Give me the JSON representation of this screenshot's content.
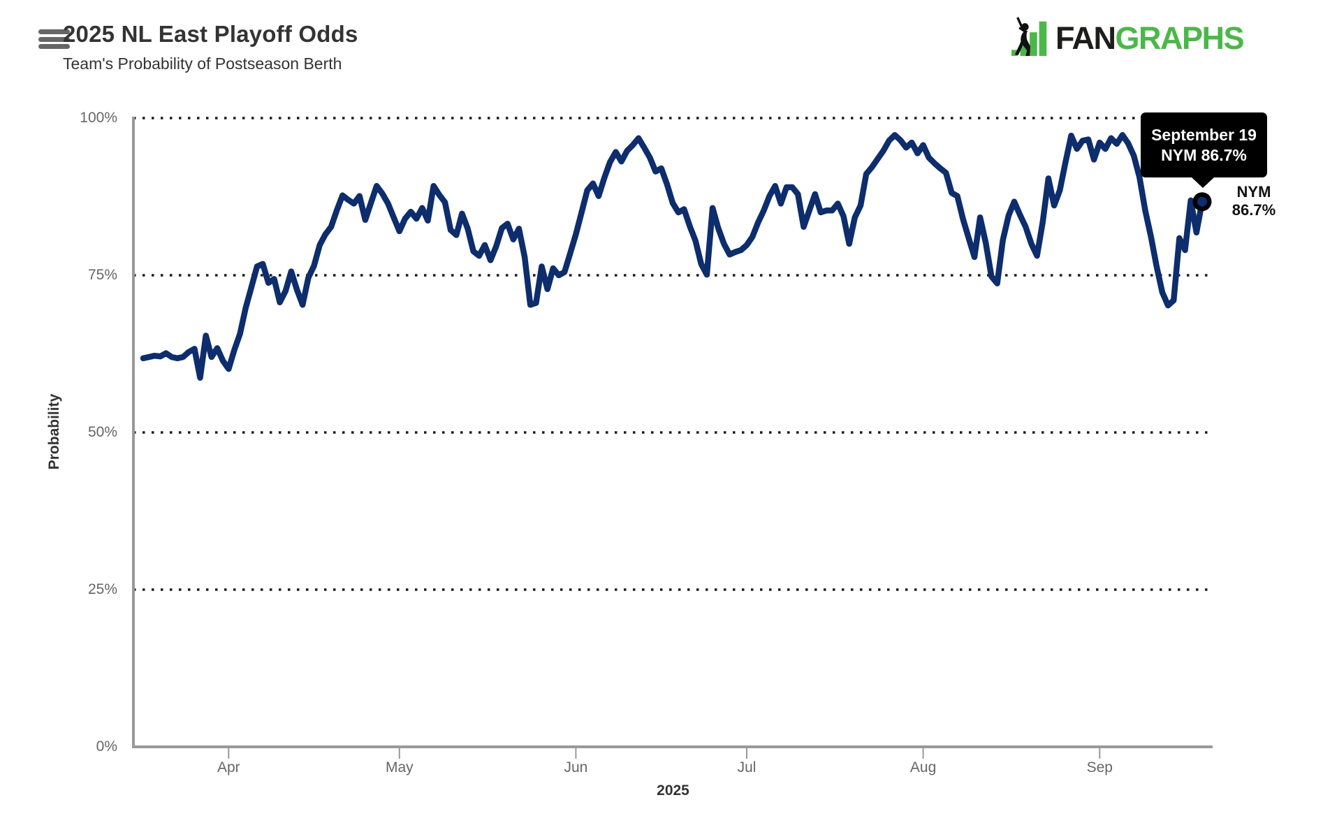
{
  "header": {
    "title": "2025 NL East Playoff Odds",
    "subtitle": "Team's Probability of Postseason Berth"
  },
  "logo": {
    "fan": "FAN",
    "graphs": "GRAPHS",
    "green": "#4cb749",
    "dark": "#1d1d1b"
  },
  "chart_data": {
    "type": "line",
    "title": "2025 NL East Playoff Odds",
    "subtitle": "Team's Probability of Postseason Berth",
    "ylabel": "Probability",
    "ylim": [
      0,
      100
    ],
    "grid": "dotted horizontal at 25/50/75/100",
    "legend_position": "none (tooltip + end label only)",
    "y_axis": {
      "ticks": [
        "100%",
        "75%",
        "50%",
        "25%",
        "0%"
      ]
    },
    "x_axis": {
      "ticks": [
        "Apr",
        "May",
        "Jun",
        "Jul",
        "Aug",
        "Sep"
      ],
      "month_tick_day_index": [
        15,
        45,
        76,
        106,
        137,
        168
      ],
      "year_label": "2025"
    },
    "series": [
      {
        "name": "NYM",
        "color": "#0d2d6d",
        "start_date": "Mar 17",
        "end_date": "Sep 19",
        "frequency": "daily",
        "values": [
          61.8,
          62.0,
          62.2,
          62.1,
          62.6,
          62.0,
          61.8,
          62.0,
          62.8,
          63.3,
          58.7,
          65.4,
          62.0,
          63.4,
          61.4,
          60.1,
          63.1,
          65.7,
          69.8,
          73.1,
          76.4,
          76.8,
          73.8,
          74.4,
          70.7,
          72.5,
          75.6,
          72.7,
          70.3,
          74.6,
          76.5,
          79.8,
          81.5,
          82.7,
          85.3,
          87.7,
          87.0,
          86.4,
          87.6,
          83.8,
          86.5,
          89.2,
          88.0,
          86.4,
          84.2,
          82.0,
          84.0,
          85.1,
          84.0,
          85.7,
          83.7,
          89.2,
          87.8,
          86.6,
          82.2,
          81.4,
          84.8,
          82.4,
          78.8,
          78.1,
          79.8,
          77.4,
          79.6,
          82.5,
          83.2,
          80.7,
          82.4,
          77.9,
          70.3,
          70.6,
          76.4,
          72.8,
          76.1,
          75.0,
          75.5,
          78.5,
          81.5,
          85.0,
          88.5,
          89.6,
          87.6,
          90.5,
          93.0,
          94.6,
          93.1,
          94.8,
          95.7,
          96.8,
          95.3,
          93.7,
          91.5,
          92.0,
          89.5,
          86.5,
          85.0,
          85.5,
          82.8,
          80.5,
          76.8,
          75.1,
          85.7,
          82.5,
          80.0,
          78.3,
          78.7,
          79.0,
          79.8,
          81.1,
          83.4,
          85.3,
          87.6,
          89.2,
          86.4,
          89.0,
          89.0,
          87.9,
          82.7,
          85.3,
          87.9,
          85.0,
          85.3,
          85.3,
          86.4,
          84.4,
          80.0,
          84.2,
          86.1,
          91.1,
          92.2,
          93.5,
          94.8,
          96.4,
          97.3,
          96.5,
          95.3,
          96.1,
          94.4,
          95.7,
          93.7,
          92.8,
          92.0,
          91.3,
          88.1,
          87.6,
          83.9,
          80.9,
          77.9,
          84.2,
          80.1,
          74.8,
          73.7,
          80.6,
          84.5,
          86.7,
          84.6,
          82.7,
          80.0,
          78.1,
          83.5,
          90.4,
          86.1,
          88.5,
          93.0,
          97.2,
          95.1,
          96.4,
          96.6,
          93.4,
          96.1,
          95.1,
          96.8,
          95.9,
          97.3,
          96.0,
          94.0,
          90.6,
          85.3,
          81.2,
          76.4,
          72.3,
          70.2,
          71.0,
          80.9,
          79.0,
          86.9,
          81.8,
          86.7
        ]
      }
    ],
    "tooltip": {
      "line1": "September 19",
      "line2": "NYM 86.7%"
    },
    "end_label": {
      "team": "NYM",
      "value": "86.7%"
    },
    "final_point": {
      "date": "September 19",
      "team": "NYM",
      "value": 86.7
    }
  }
}
